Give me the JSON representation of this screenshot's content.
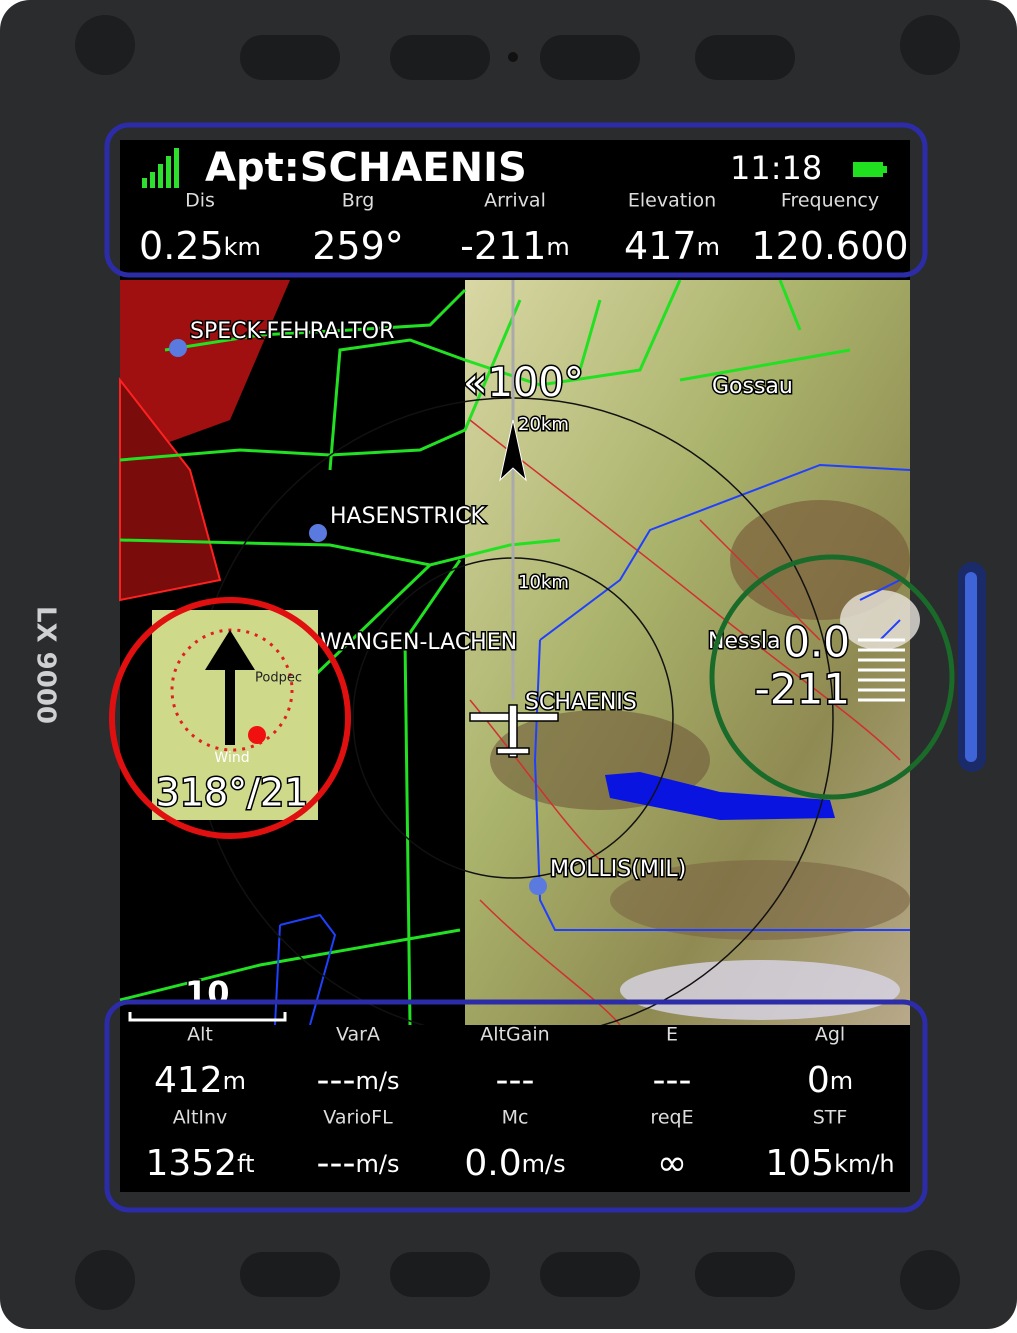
{
  "device": {
    "label": "LX 9000"
  },
  "header": {
    "title": "Apt:SCHAENIS",
    "time": "11:18",
    "fields": [
      {
        "label": "Dis",
        "value": "0.25",
        "unit": "km"
      },
      {
        "label": "Brg",
        "value": "259°"
      },
      {
        "label": "Arrival",
        "value": "-211",
        "unit": "m"
      },
      {
        "label": "Elevation",
        "value": "417",
        "unit": "m"
      },
      {
        "label": "Frequency",
        "value": "120.600"
      }
    ]
  },
  "map": {
    "track": "«100°",
    "rings": [
      "20km",
      "10km"
    ],
    "places": [
      "SPECK-FEHRALTOR",
      "HASENSTRICK",
      "WANGEN-LACHEN",
      "SCHAENIS",
      "MOLLIS(MIL)",
      "Gossau",
      "Nessla"
    ],
    "scale": "10"
  },
  "wind": {
    "place": "Podpec",
    "label": "Wind",
    "value": "318°/21"
  },
  "vario": {
    "value": "0.0",
    "altitude": "-211"
  },
  "footer": {
    "rows": [
      [
        {
          "label": "Alt",
          "value": "412",
          "unit": "m"
        },
        {
          "label": "VarA",
          "value": "---",
          "unit": "m/s"
        },
        {
          "label": "AltGain",
          "value": "---"
        },
        {
          "label": "E",
          "value": "---"
        },
        {
          "label": "Agl",
          "value": "0",
          "unit": "m"
        }
      ],
      [
        {
          "label": "AltInv",
          "value": "1352",
          "unit": "ft"
        },
        {
          "label": "VarioFL",
          "value": "---",
          "unit": "m/s"
        },
        {
          "label": "Mc",
          "value": "0.0",
          "unit": "m/s"
        },
        {
          "label": "reqE",
          "value": "∞"
        },
        {
          "label": "STF",
          "value": "105",
          "unit": "km/h"
        }
      ]
    ]
  }
}
